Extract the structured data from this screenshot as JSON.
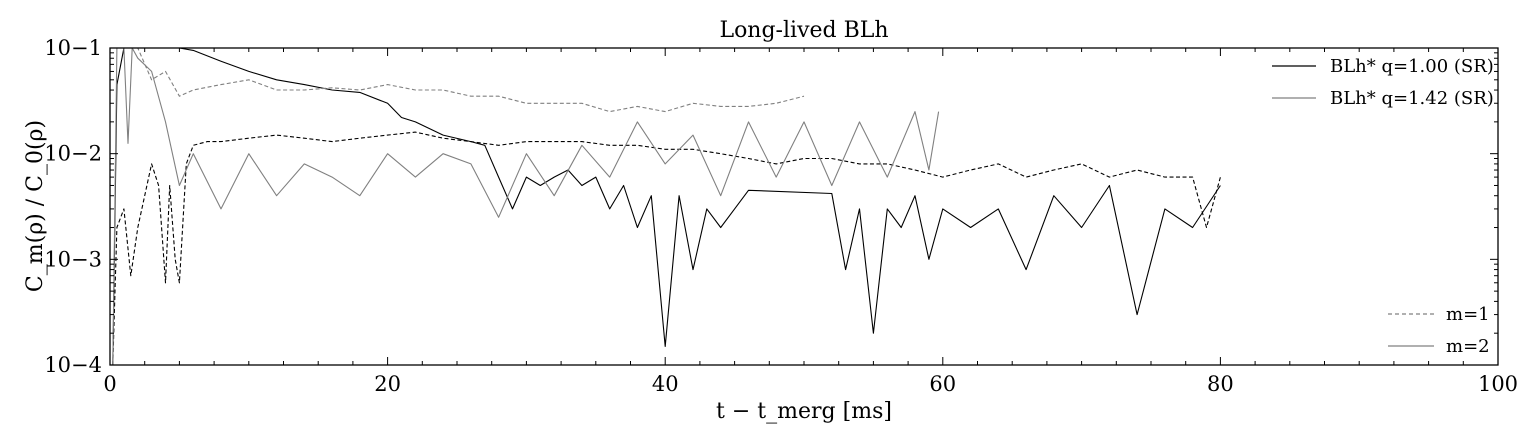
{
  "chart_data": {
    "type": "line",
    "title": "Long-lived BLh",
    "xlabel": "t − t_merg [ms]",
    "ylabel": "C_m(ρ) / C_0(ρ)",
    "xlim": [
      0,
      100
    ],
    "ylim": [
      0.0001,
      0.1
    ],
    "yscale": "log",
    "grid": false,
    "x_ticks": [
      0,
      20,
      40,
      60,
      80,
      100
    ],
    "x_tick_labels": [
      "0",
      "20",
      "40",
      "60",
      "80",
      "100"
    ],
    "y_ticks": [
      0.0001,
      0.001,
      0.01,
      0.1
    ],
    "y_tick_labels": [
      "10−4",
      "10−3",
      "10−2",
      "10−1"
    ],
    "colors": {
      "q100": "#000000",
      "q142": "#808080"
    },
    "legend_models": {
      "placement": "top-right",
      "entries": [
        {
          "label": "BLh* q=1.00 (SR)",
          "color": "#000000",
          "dash": "solid"
        },
        {
          "label": "BLh* q=1.42 (SR)",
          "color": "#808080",
          "dash": "solid"
        }
      ]
    },
    "legend_modes": {
      "placement": "bottom-right",
      "entries": [
        {
          "label": "m=1",
          "color": "#808080",
          "dash": "dashed"
        },
        {
          "label": "m=2",
          "color": "#808080",
          "dash": "solid"
        }
      ]
    },
    "series": [
      {
        "name": "BLh* q=1.00 (SR)",
        "mode": "m=2",
        "color": "#000000",
        "dash": "solid",
        "x": [
          0.2,
          0.5,
          1,
          2,
          3,
          4,
          5,
          6,
          8,
          10,
          12,
          14,
          16,
          18,
          20,
          21,
          22,
          24,
          26,
          27,
          28,
          29,
          30,
          31,
          32,
          33,
          34,
          35,
          36,
          37,
          38,
          39,
          40,
          41,
          42,
          43,
          44,
          45,
          46,
          52,
          53,
          54,
          55,
          56,
          57,
          58,
          59,
          60,
          62,
          64,
          66,
          68,
          70,
          72,
          74,
          76,
          78,
          80
        ],
        "y": [
          0.0001,
          0.045,
          0.1,
          0.1,
          0.1,
          0.1,
          0.1,
          0.095,
          0.075,
          0.06,
          0.05,
          0.045,
          0.04,
          0.038,
          0.03,
          0.022,
          0.02,
          0.015,
          0.013,
          0.012,
          0.006,
          0.003,
          0.006,
          0.005,
          0.006,
          0.007,
          0.005,
          0.006,
          0.003,
          0.005,
          0.002,
          0.004,
          0.00015,
          0.004,
          0.0008,
          0.003,
          0.002,
          0.003,
          0.0045,
          0.0042,
          0.0008,
          0.003,
          0.0002,
          0.003,
          0.002,
          0.004,
          0.001,
          0.003,
          0.002,
          0.003,
          0.0008,
          0.004,
          0.002,
          0.005,
          0.0003,
          0.003,
          0.002,
          0.005
        ]
      },
      {
        "name": "BLh* q=1.00 (SR)",
        "mode": "m=1",
        "color": "#000000",
        "dash": "dashed",
        "x": [
          0.2,
          0.5,
          1,
          1.5,
          2,
          2.5,
          3,
          3.5,
          4,
          4.3,
          4.7,
          5,
          5.5,
          6,
          7,
          8,
          10,
          12,
          14,
          16,
          18,
          20,
          22,
          24,
          26,
          28,
          30,
          32,
          34,
          36,
          38,
          40,
          42,
          44,
          46,
          48,
          50,
          52,
          54,
          56,
          58,
          60,
          62,
          64,
          66,
          68,
          70,
          72,
          74,
          76,
          78,
          79,
          80
        ],
        "y": [
          0.0001,
          0.002,
          0.003,
          0.0007,
          0.002,
          0.004,
          0.008,
          0.005,
          0.0006,
          0.005,
          0.001,
          0.0006,
          0.008,
          0.012,
          0.013,
          0.013,
          0.014,
          0.015,
          0.014,
          0.013,
          0.014,
          0.015,
          0.016,
          0.014,
          0.013,
          0.012,
          0.013,
          0.013,
          0.013,
          0.012,
          0.012,
          0.011,
          0.011,
          0.01,
          0.009,
          0.008,
          0.009,
          0.009,
          0.008,
          0.008,
          0.007,
          0.006,
          0.007,
          0.008,
          0.006,
          0.007,
          0.008,
          0.006,
          0.007,
          0.006,
          0.006,
          0.002,
          0.006
        ]
      },
      {
        "name": "BLh* q=1.42 (SR)",
        "mode": "m=2",
        "color": "#808080",
        "dash": "solid",
        "x": [
          0.2,
          0.5,
          1,
          1.3,
          1.6,
          2,
          3,
          4,
          5,
          6,
          8,
          10,
          12,
          14,
          16,
          18,
          20,
          22,
          24,
          26,
          28,
          30,
          32,
          34,
          36,
          38,
          40,
          42,
          44,
          46,
          48,
          50,
          52,
          54,
          56,
          58,
          59,
          59.7
        ],
        "y": [
          0.0001,
          0.1,
          0.1,
          0.0125,
          0.1,
          0.08,
          0.06,
          0.02,
          0.005,
          0.01,
          0.003,
          0.01,
          0.004,
          0.008,
          0.006,
          0.004,
          0.01,
          0.006,
          0.01,
          0.008,
          0.0025,
          0.01,
          0.004,
          0.012,
          0.006,
          0.02,
          0.008,
          0.015,
          0.004,
          0.02,
          0.006,
          0.02,
          0.005,
          0.02,
          0.006,
          0.025,
          0.007,
          0.025
        ]
      },
      {
        "name": "BLh* q=1.42 (SR)",
        "mode": "m=1",
        "color": "#808080",
        "dash": "dashed",
        "x": [
          0.5,
          1,
          2,
          3,
          4,
          5,
          6,
          8,
          10,
          12,
          14,
          16,
          18,
          20,
          22,
          24,
          26,
          28,
          30,
          32,
          34,
          36,
          38,
          40,
          42,
          44,
          46,
          48,
          50
        ],
        "y": [
          0.1,
          0.1,
          0.1,
          0.05,
          0.06,
          0.035,
          0.04,
          0.045,
          0.05,
          0.04,
          0.04,
          0.042,
          0.04,
          0.045,
          0.04,
          0.04,
          0.035,
          0.035,
          0.03,
          0.03,
          0.03,
          0.025,
          0.028,
          0.025,
          0.03,
          0.028,
          0.028,
          0.03,
          0.035
        ]
      }
    ]
  }
}
